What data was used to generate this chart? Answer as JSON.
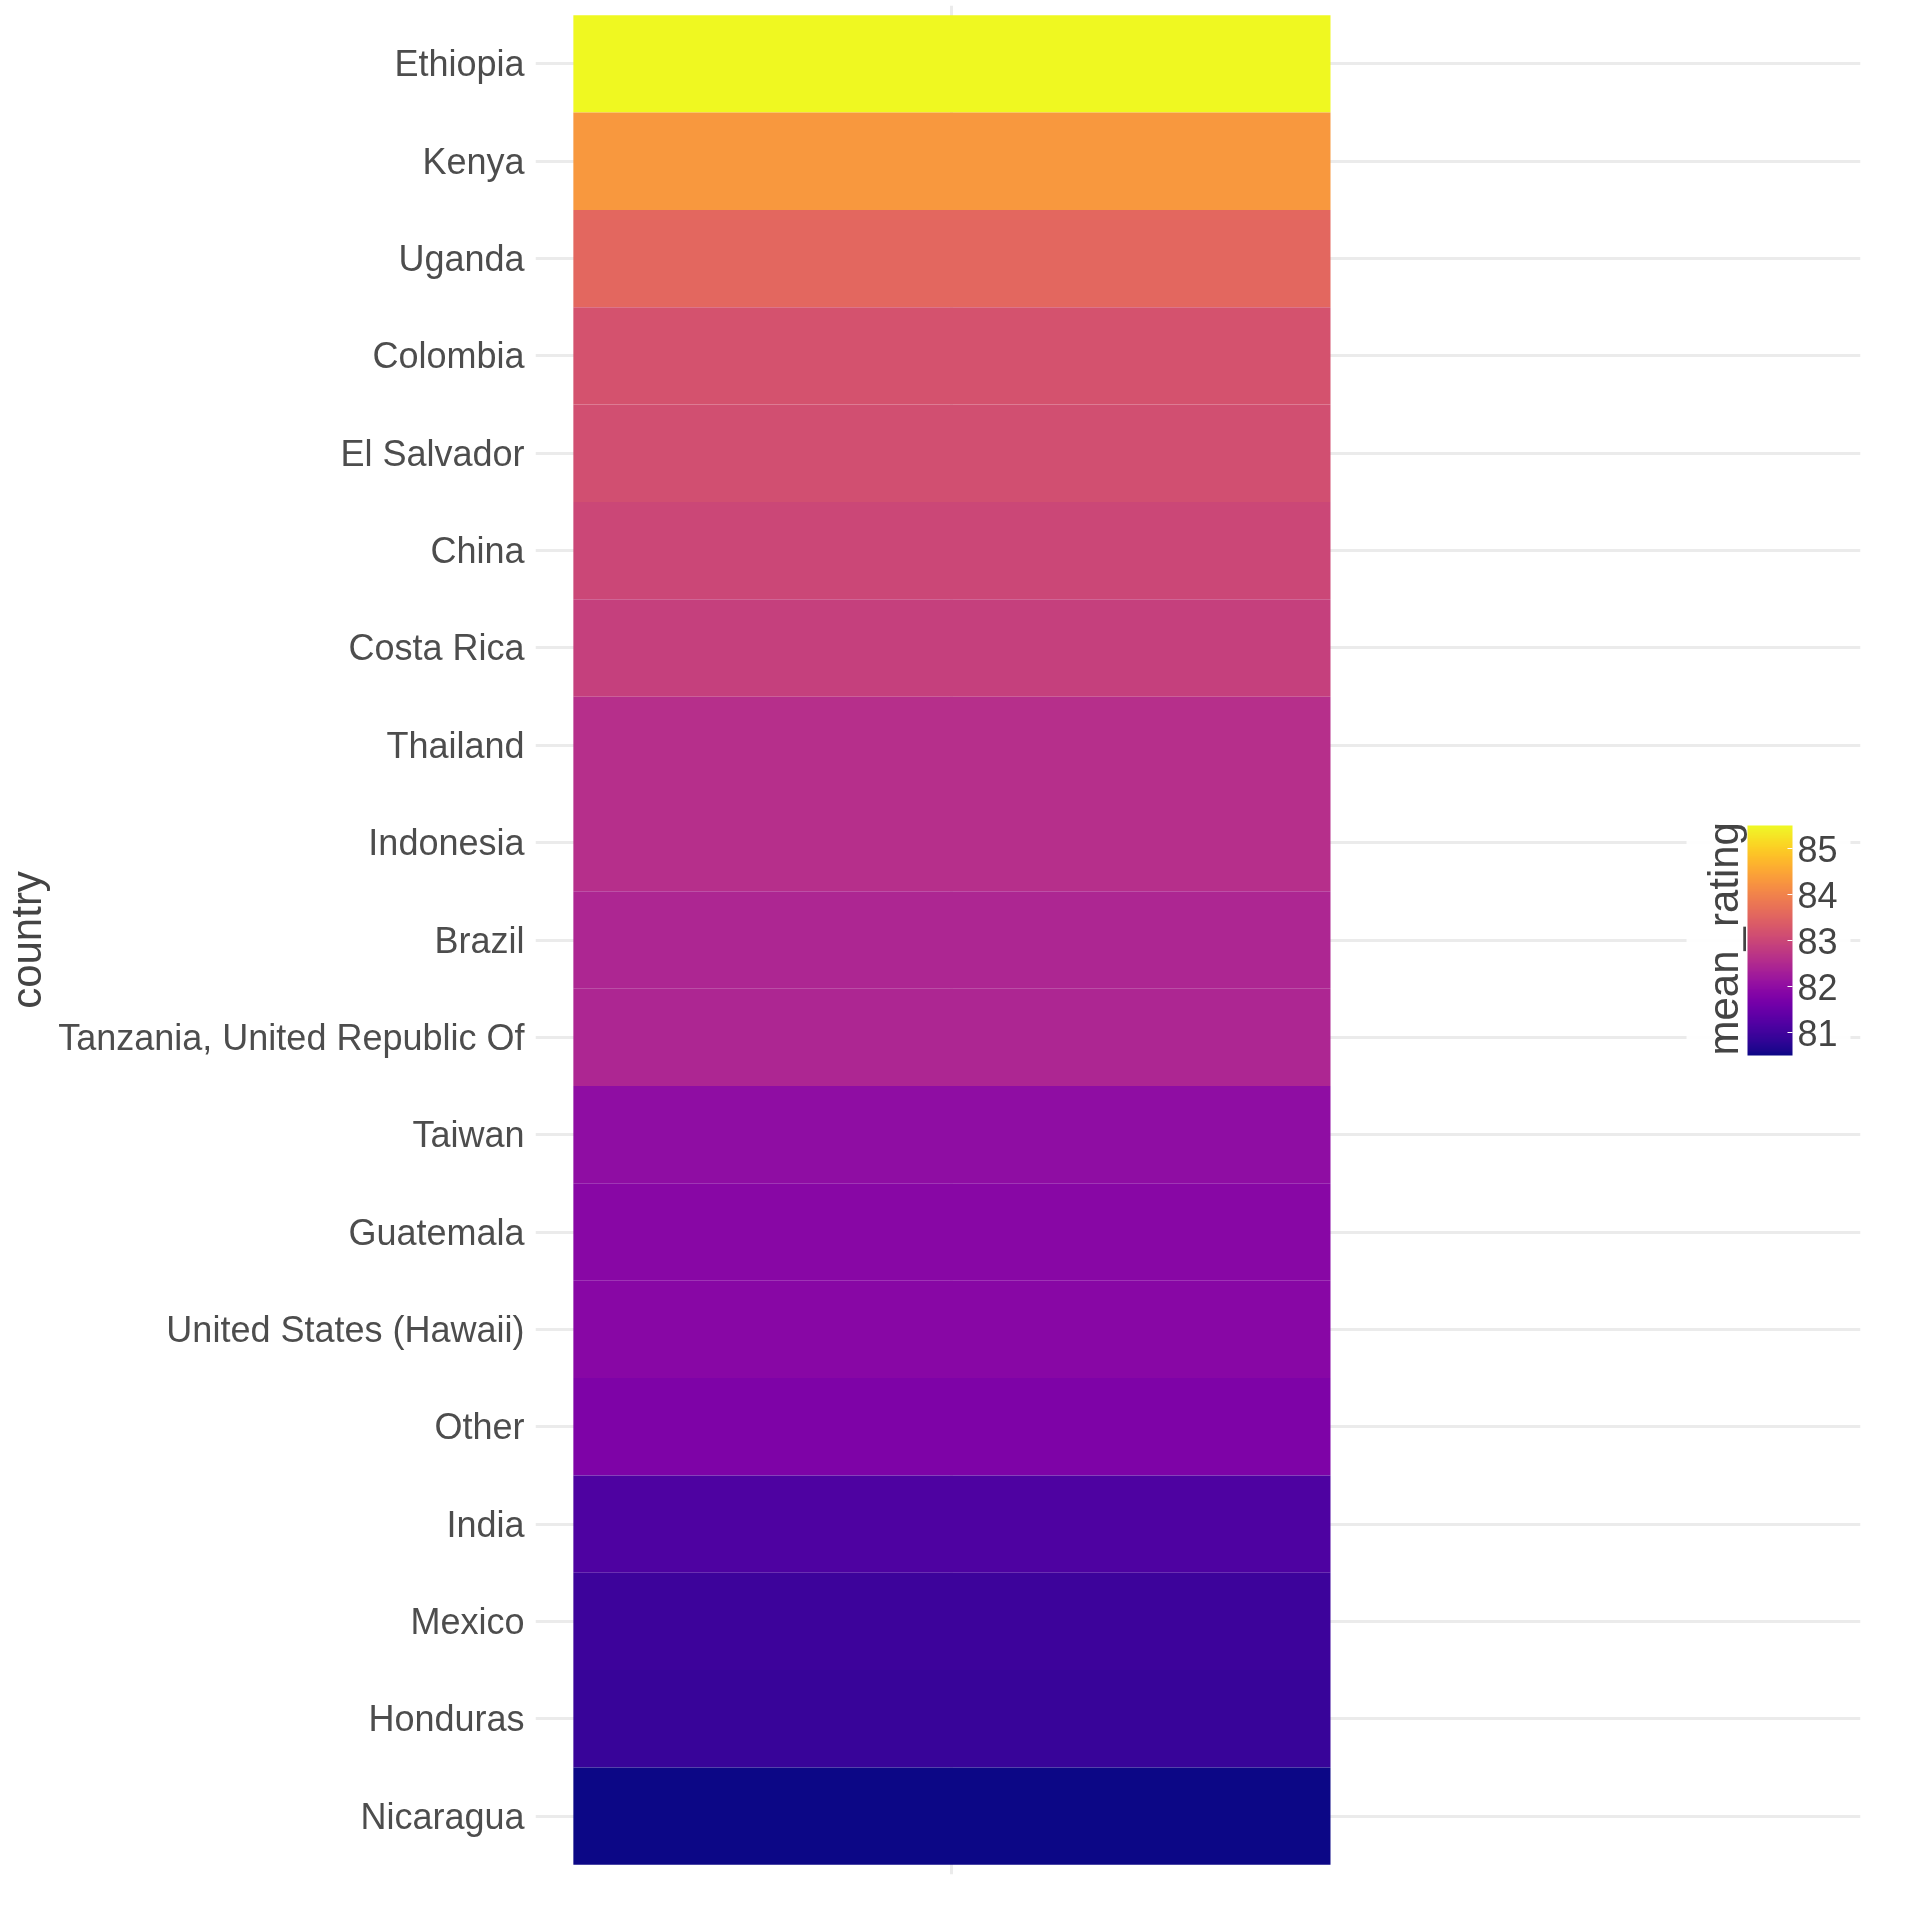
{
  "chart_data": {
    "type": "heatmap",
    "ylabel": "country",
    "clabel": "mean_rating",
    "categories": [
      null
    ],
    "y_categories": [
      "Ethiopia",
      "Kenya",
      "Uganda",
      "Colombia",
      "El Salvador",
      "China",
      "Costa Rica",
      "Thailand",
      "Indonesia",
      "Brazil",
      "Tanzania, United Republic Of",
      "Taiwan",
      "Guatemala",
      "United States (Hawaii)",
      "Other",
      "India",
      "Mexico",
      "Honduras",
      "Nicaragua"
    ],
    "cells": [
      [
        85.5
      ],
      [
        84.3
      ],
      [
        83.55
      ],
      [
        83.2
      ],
      [
        83.15
      ],
      [
        83.0
      ],
      [
        82.9
      ],
      [
        82.6
      ],
      [
        82.6
      ],
      [
        82.45
      ],
      [
        82.45
      ],
      [
        82.0
      ],
      [
        81.9
      ],
      [
        81.9
      ],
      [
        81.75
      ],
      [
        81.15
      ],
      [
        80.95
      ],
      [
        80.9
      ],
      [
        80.5
      ]
    ],
    "clim": [
      80.5,
      85.5
    ],
    "cticks": [
      81,
      82,
      83,
      84,
      85
    ],
    "tick_labels": "y",
    "grid": true
  }
}
